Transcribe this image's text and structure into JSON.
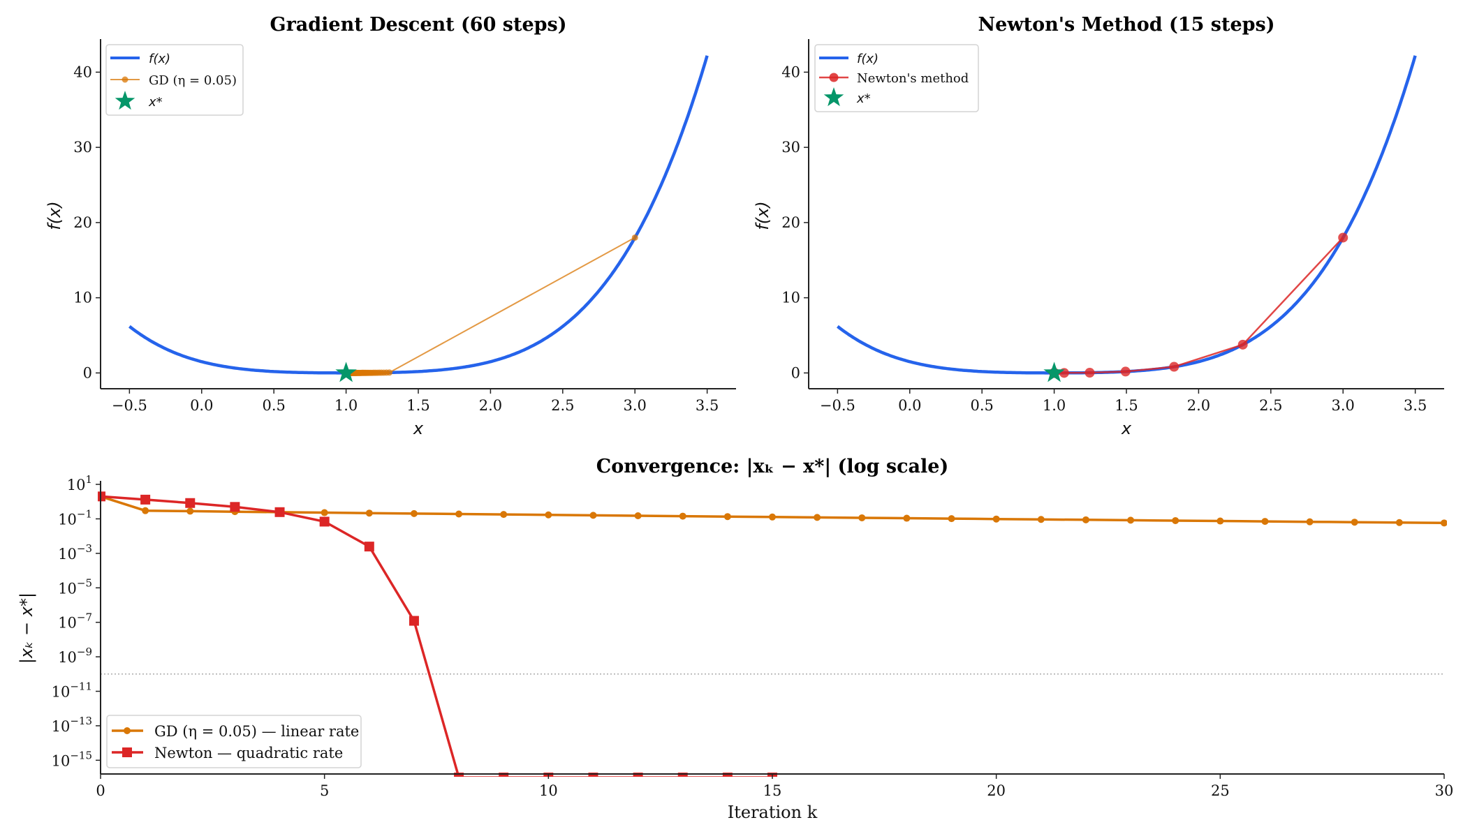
{
  "colors": {
    "f": "#2563eb",
    "gd": "#d97706",
    "newton": "#dc2626",
    "star": "#059669",
    "tolerance": "#aaaaaa"
  },
  "chart_data": [
    {
      "type": "line",
      "title": "Gradient Descent (60 steps)",
      "xlabel": "x",
      "ylabel": "f(x)",
      "xlim": [
        -0.7,
        3.7
      ],
      "ylim": [
        -2.1,
        44.4
      ],
      "xticks": [
        -0.5,
        0.0,
        0.5,
        1.0,
        1.5,
        2.0,
        2.5,
        3.0,
        3.5
      ],
      "xtick_labels": [
        "−0.5",
        "0.0",
        "0.5",
        "1.0",
        "1.5",
        "2.0",
        "2.5",
        "3.0",
        "3.5"
      ],
      "yticks": [
        0,
        10,
        20,
        30,
        40
      ],
      "ytick_labels": [
        "0",
        "10",
        "20",
        "30",
        "40"
      ],
      "function": "f(x) = (x−1)^4 + 0.5(x−1)^2",
      "function_domain": [
        -0.5,
        3.5
      ],
      "legend": {
        "placement": "upper-left",
        "entries": [
          "f(x)",
          "GD (η = 0.05)",
          "x*"
        ]
      },
      "minimum": {
        "x": 1.0,
        "y": 0.0
      },
      "iterates_x": [
        3,
        1.3,
        1.2796,
        1.26125,
        1.24462,
        1.22946,
        1.21557,
        1.20279,
        1.19098,
        1.18004,
        1.16987,
        1.1604,
        1.15155,
        1.14327,
        1.13552,
        1.12824,
        1.12141,
        1.11498,
        1.10893,
        1.10322,
        1.09784,
        1.09276,
        1.08796,
        1.08342,
        1.07913,
        1.07507,
        1.07123,
        1.0676,
        1.06416,
        1.0609,
        1.05781,
        1.05488,
        1.05211,
        1.04947,
        1.04698,
        1.04461,
        1.04236,
        1.04023,
        1.03821,
        1.03629,
        1.03447,
        1.03274,
        1.03109,
        1.02953,
        1.02805,
        1.02665,
        1.02532,
        1.02405,
        1.02285,
        1.02171,
        1.02062,
        1.01959,
        1.01861,
        1.01768,
        1.0168,
        1.01596,
        1.01516,
        1.0144,
        1.01368,
        1.013,
        1.01235
      ]
    },
    {
      "type": "line",
      "title": "Newton's Method (15 steps)",
      "xlabel": "x",
      "ylabel": "f(x)",
      "xlim": [
        -0.7,
        3.7
      ],
      "ylim": [
        -2.1,
        44.4
      ],
      "xticks": [
        -0.5,
        0.0,
        0.5,
        1.0,
        1.5,
        2.0,
        2.5,
        3.0,
        3.5
      ],
      "xtick_labels": [
        "−0.5",
        "0.0",
        "0.5",
        "1.0",
        "1.5",
        "2.0",
        "2.5",
        "3.0",
        "3.5"
      ],
      "yticks": [
        0,
        10,
        20,
        30,
        40
      ],
      "ytick_labels": [
        "0",
        "10",
        "20",
        "30",
        "40"
      ],
      "function": "f(x) = (x−1)^4 + 0.5(x−1)^2",
      "function_domain": [
        -0.5,
        3.5
      ],
      "legend": {
        "placement": "upper-left",
        "entries": [
          "f(x)",
          "Newton's method",
          "x*"
        ]
      },
      "minimum": {
        "x": 1.0,
        "y": 0.0
      },
      "iterates_x": [
        3,
        2.306,
        1.83,
        1.494,
        1.246,
        1.069,
        1.00248,
        1.00000012,
        1,
        1,
        1,
        1,
        1,
        1,
        1,
        1
      ]
    },
    {
      "type": "line",
      "title": "Convergence: |xₖ − x*| (log scale)",
      "xlabel": "Iteration k",
      "ylabel": "|xₖ − x*|",
      "yscale": "log",
      "xlim": [
        0,
        30
      ],
      "ylim": [
        1.6e-16,
        16
      ],
      "xticks": [
        0,
        5,
        10,
        15,
        20,
        25,
        30
      ],
      "xtick_labels": [
        "0",
        "5",
        "10",
        "15",
        "20",
        "25",
        "30"
      ],
      "ytick_exponents": [
        1,
        -1,
        -3,
        -5,
        -7,
        -9,
        -11,
        -13,
        -15
      ],
      "ytick_base": "10",
      "tolerance_line": 1e-10,
      "legend": {
        "placement": "lower-left"
      },
      "series": [
        {
          "name": "GD (η = 0.05) — linear rate",
          "marker": "circle",
          "values": [
            2,
            0.3,
            0.2796,
            0.26125,
            0.24462,
            0.22946,
            0.21557,
            0.20279,
            0.19098,
            0.18004,
            0.16987,
            0.1604,
            0.15155,
            0.14327,
            0.13552,
            0.12824,
            0.12141,
            0.11498,
            0.10893,
            0.10322,
            0.09784,
            0.09276,
            0.08796,
            0.08342,
            0.07913,
            0.07507,
            0.07123,
            0.0676,
            0.06416,
            0.0609,
            0.05781,
            0.05488,
            0.05211,
            0.04947,
            0.04698,
            0.04461,
            0.04236,
            0.04023,
            0.03821,
            0.03629,
            0.03447,
            0.03274,
            0.03109,
            0.02953,
            0.02805,
            0.02665,
            0.02532,
            0.02405,
            0.02285,
            0.02171,
            0.02062,
            0.01959,
            0.01861,
            0.01768,
            0.0168,
            0.01596,
            0.01516,
            0.0144,
            0.01368,
            0.013,
            0.01235
          ]
        },
        {
          "name": "Newton — quadratic rate",
          "marker": "square",
          "values": [
            2,
            1.306,
            0.83,
            0.494,
            0.246,
            0.069,
            0.00248,
            1.22e-07,
            1e-16,
            1e-16,
            1e-16,
            1e-16,
            1e-16,
            1e-16,
            1e-16,
            1e-16
          ]
        }
      ]
    }
  ]
}
